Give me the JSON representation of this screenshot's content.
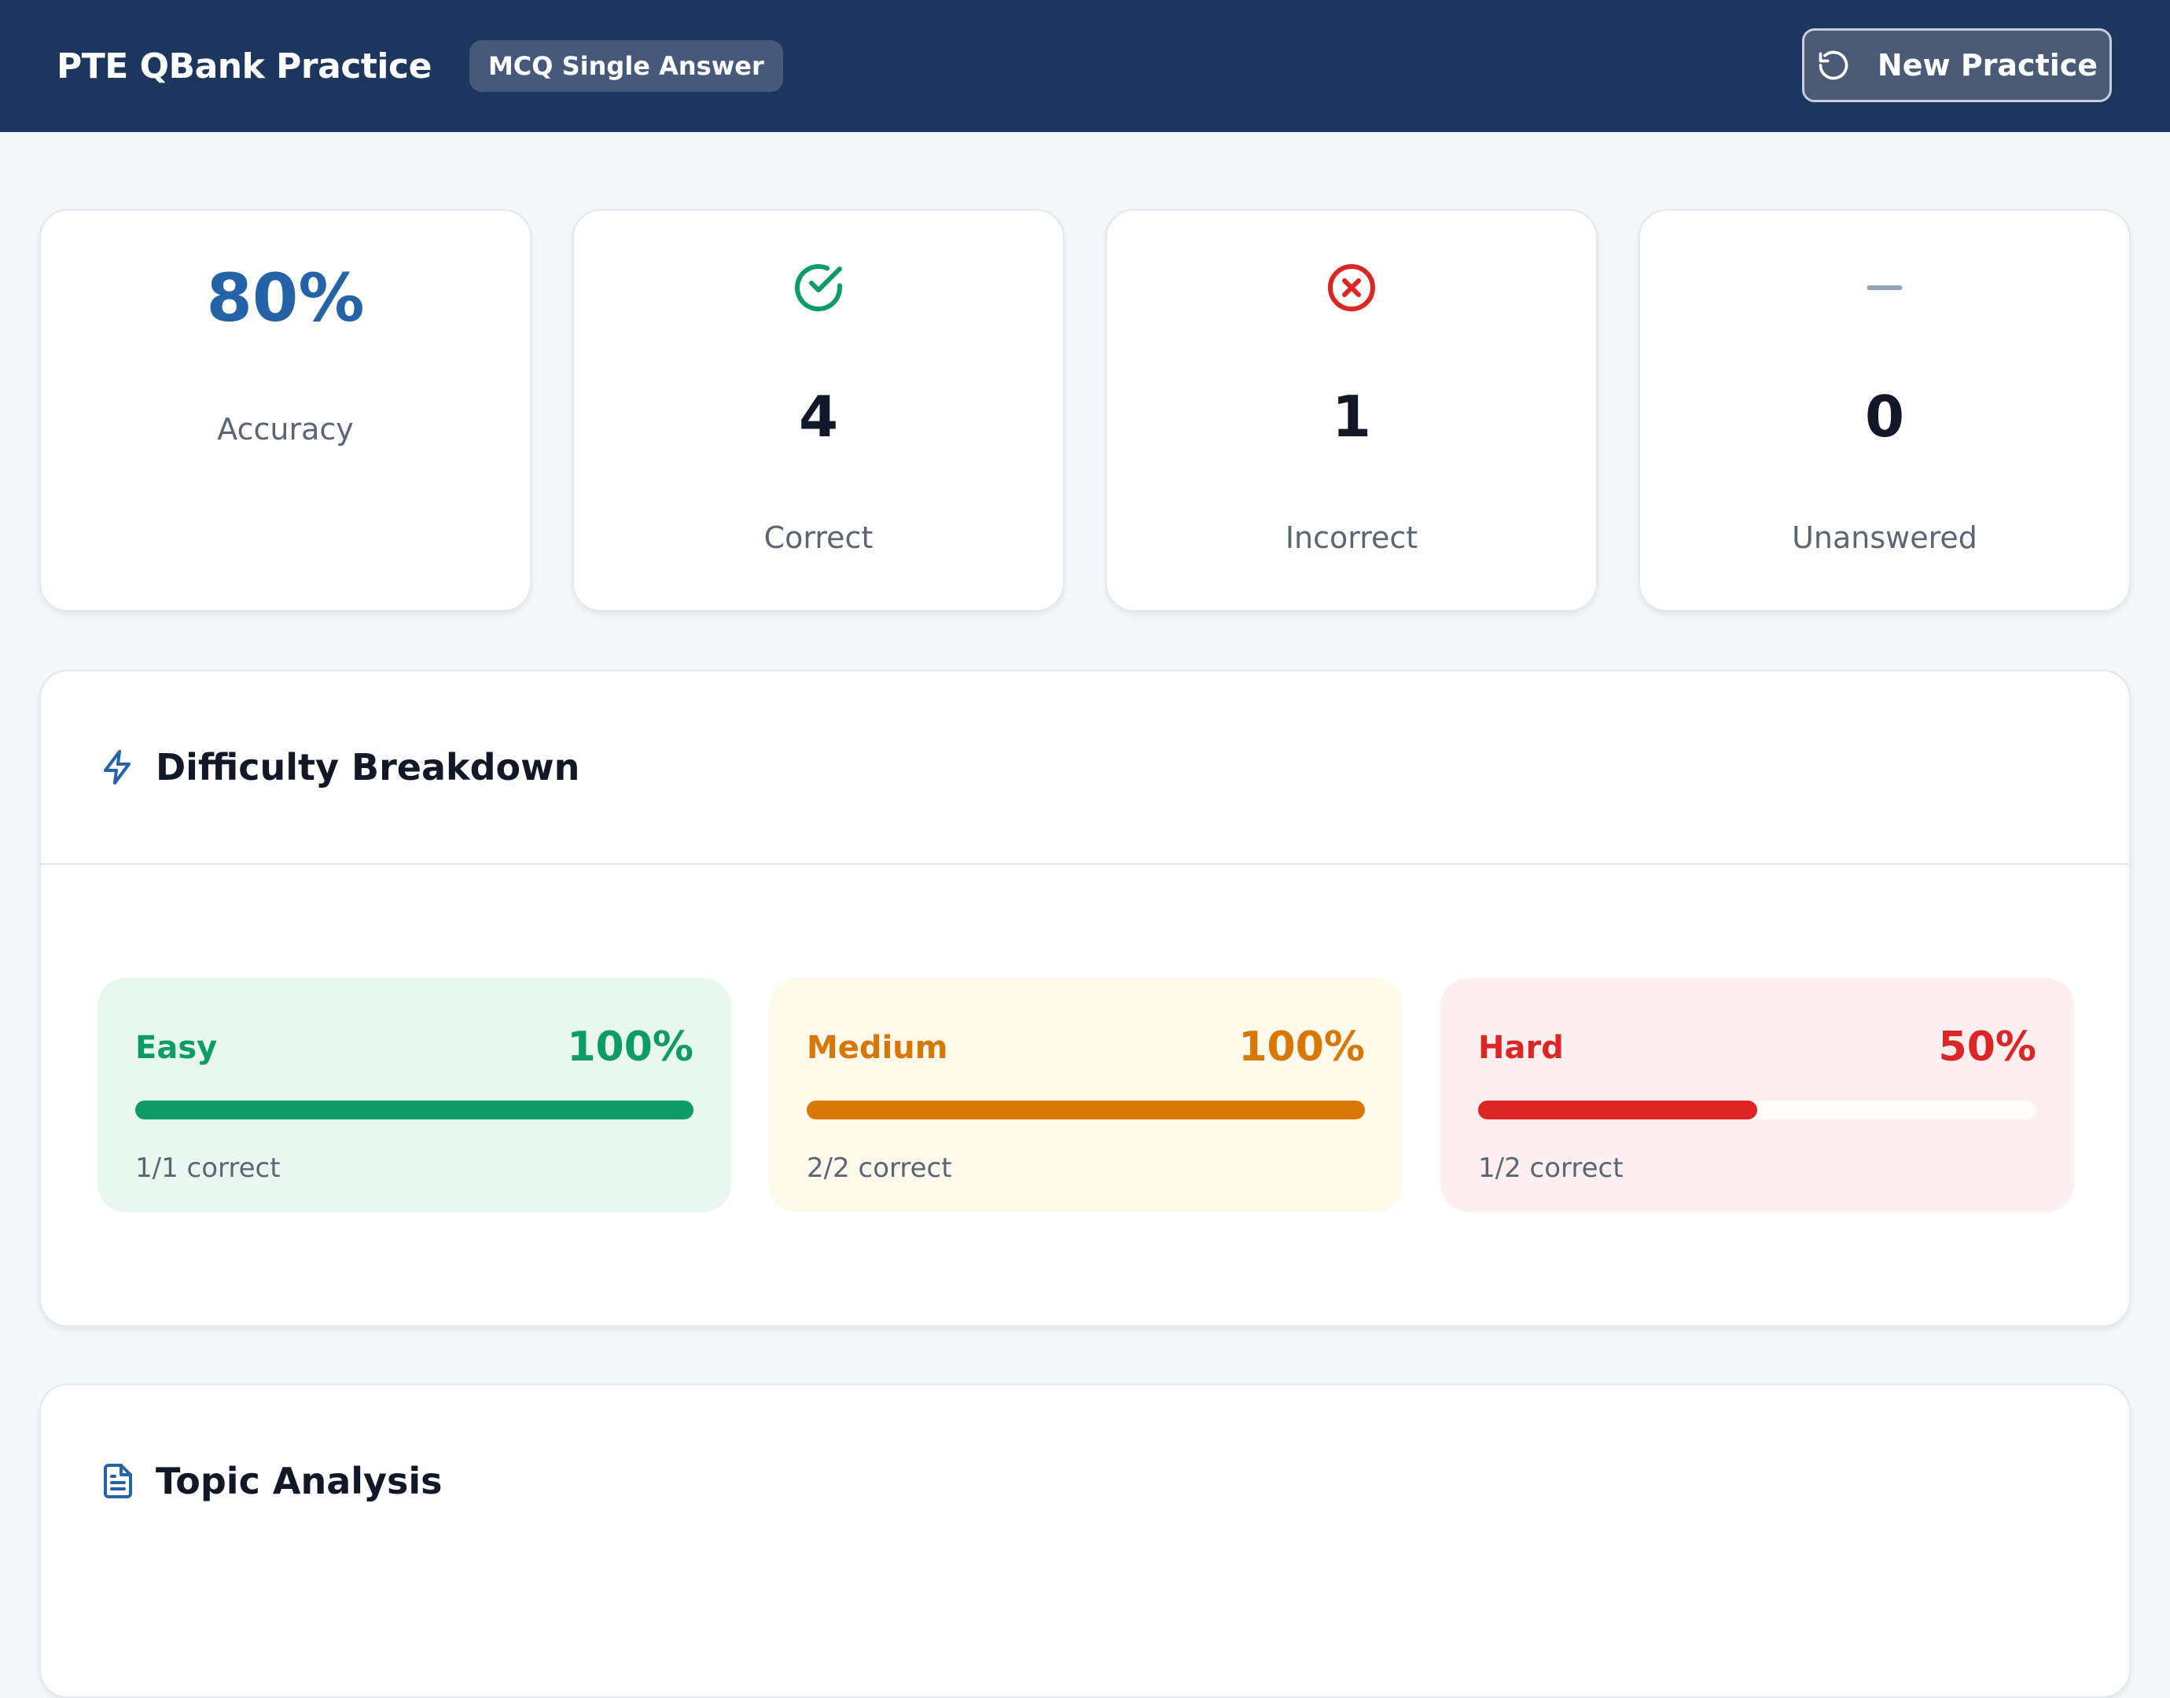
{
  "header": {
    "title": "PTE QBank Practice",
    "badge": "MCQ Single Answer",
    "new_practice_label": "New Practice"
  },
  "stats": {
    "accuracy_value": "80%",
    "accuracy_label": "Accuracy",
    "correct_value": "4",
    "correct_label": "Correct",
    "incorrect_value": "1",
    "incorrect_label": "Incorrect",
    "unanswered_value": "0",
    "unanswered_label": "Unanswered"
  },
  "difficulty": {
    "title": "Difficulty Breakdown",
    "items": [
      {
        "name": "Easy",
        "percent": "100%",
        "fraction": 1.0,
        "detail": "1/1 correct",
        "color": "#0e9b6a",
        "bg": "#e8f8f1"
      },
      {
        "name": "Medium",
        "percent": "100%",
        "fraction": 1.0,
        "detail": "2/2 correct",
        "color": "#d97706",
        "bg": "#fffaeb"
      },
      {
        "name": "Hard",
        "percent": "50%",
        "fraction": 0.5,
        "detail": "1/2 correct",
        "color": "#dc2626",
        "bg": "#fef0f0"
      }
    ]
  },
  "topics": {
    "title": "Topic Analysis"
  },
  "icons": {
    "new_practice": "refresh-icon",
    "correct": "check-circle-icon",
    "incorrect": "x-circle-icon",
    "unanswered": "dash-icon",
    "difficulty": "lightning-icon",
    "topics": "document-icon"
  }
}
